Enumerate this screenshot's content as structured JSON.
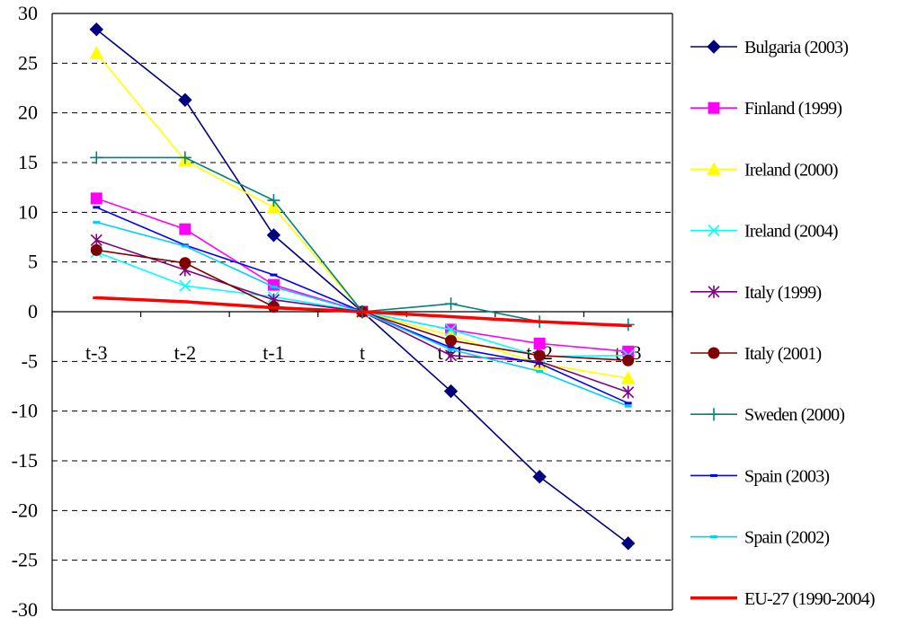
{
  "chart_data": {
    "type": "line",
    "title": "",
    "xlabel": "",
    "ylabel": "",
    "categories": [
      "t-3",
      "t-2",
      "t-1",
      "t",
      "t+1",
      "t+2",
      "t+3"
    ],
    "ylim": [
      -30,
      30
    ],
    "yticks": [
      30,
      25,
      20,
      15,
      10,
      5,
      0,
      -5,
      -10,
      -15,
      -20,
      -25,
      -30
    ],
    "grid": "horizontal dashed",
    "legend_position": "right",
    "series": [
      {
        "name": "Bulgaria (2003)",
        "color": "#000080",
        "marker": "diamond",
        "values": [
          28.4,
          21.3,
          7.7,
          0,
          -8.0,
          -16.6,
          -23.3
        ]
      },
      {
        "name": "Finland (1999)",
        "color": "#FF00FF",
        "marker": "square",
        "values": [
          11.4,
          8.3,
          2.7,
          0,
          -1.8,
          -3.2,
          -4.0
        ]
      },
      {
        "name": "Ireland (2000)",
        "color": "#FFFF00",
        "marker": "triangle",
        "values": [
          26.0,
          15.2,
          10.5,
          0,
          -2.4,
          -5.2,
          -6.7
        ]
      },
      {
        "name": "Ireland (2004)",
        "color": "#00FFFF",
        "marker": "x",
        "values": [
          6.0,
          2.6,
          1.5,
          0,
          -1.8,
          -4.5,
          -4.4
        ]
      },
      {
        "name": "Italy (1999)",
        "color": "#800080",
        "marker": "star",
        "values": [
          7.2,
          4.2,
          1.2,
          0,
          -4.4,
          -5.0,
          -8.1
        ]
      },
      {
        "name": "Italy (2001)",
        "color": "#800000",
        "marker": "circle",
        "values": [
          6.2,
          4.9,
          0.5,
          0,
          -2.9,
          -4.4,
          -4.9
        ]
      },
      {
        "name": "Sweden (2000)",
        "color": "#008080",
        "marker": "plus",
        "values": [
          15.5,
          15.5,
          11.2,
          0,
          0.8,
          -1.0,
          -1.3
        ]
      },
      {
        "name": "Spain (2003)",
        "color": "#0000FF",
        "marker": "dash",
        "values": [
          10.5,
          6.7,
          3.7,
          0,
          -3.6,
          -5.2,
          -9.2
        ]
      },
      {
        "name": "Spain (2002)",
        "color": "#00CCFF",
        "marker": "dash",
        "values": [
          9.0,
          6.6,
          2.5,
          0,
          -3.8,
          -6.0,
          -9.5
        ]
      },
      {
        "name": "EU-27 (1990-2004)",
        "color": "#FF0000",
        "marker": "dash",
        "thick": true,
        "values": [
          1.4,
          1.0,
          0.4,
          0,
          -0.5,
          -1.0,
          -1.4
        ]
      }
    ]
  }
}
